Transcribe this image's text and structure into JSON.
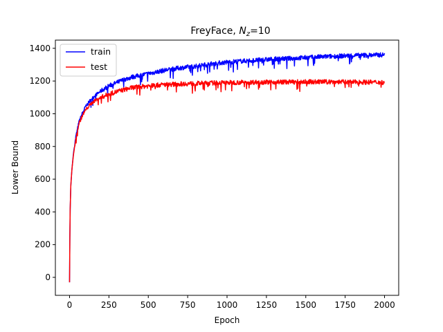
{
  "chart_data": {
    "type": "line",
    "title": {
      "prefix": "FreyFace, ",
      "symbol": "N",
      "subscript": "z",
      "suffix": "=10"
    },
    "xlabel": "Epoch",
    "ylabel": "Lower Bound",
    "xlim": [
      -90,
      2090
    ],
    "ylim": [
      -110,
      1450
    ],
    "xticks": [
      0,
      250,
      500,
      750,
      1000,
      1250,
      1500,
      1750,
      2000
    ],
    "yticks": [
      0,
      200,
      400,
      600,
      800,
      1000,
      1200,
      1400
    ],
    "grid": false,
    "legend_position": "upper-left",
    "series": [
      {
        "name": "train",
        "color": "#0000ff",
        "points": [
          [
            0,
            -30
          ],
          [
            3,
            380
          ],
          [
            8,
            560
          ],
          [
            15,
            660
          ],
          [
            25,
            760
          ],
          [
            40,
            860
          ],
          [
            60,
            950
          ],
          [
            80,
            1000
          ],
          [
            100,
            1040
          ],
          [
            130,
            1080
          ],
          [
            160,
            1110
          ],
          [
            200,
            1140
          ],
          [
            250,
            1170
          ],
          [
            300,
            1190
          ],
          [
            350,
            1210
          ],
          [
            400,
            1225
          ],
          [
            450,
            1235
          ],
          [
            500,
            1245
          ],
          [
            600,
            1265
          ],
          [
            700,
            1280
          ],
          [
            800,
            1290
          ],
          [
            900,
            1305
          ],
          [
            1000,
            1315
          ],
          [
            1100,
            1322
          ],
          [
            1200,
            1328
          ],
          [
            1300,
            1334
          ],
          [
            1400,
            1338
          ],
          [
            1500,
            1343
          ],
          [
            1600,
            1348
          ],
          [
            1700,
            1352
          ],
          [
            1800,
            1356
          ],
          [
            1900,
            1358
          ],
          [
            2000,
            1360
          ]
        ],
        "dips": [
          [
            780,
            1235
          ],
          [
            1040,
            1255
          ],
          [
            1200,
            1280
          ],
          [
            1550,
            1295
          ],
          [
            1010,
            1265
          ]
        ]
      },
      {
        "name": "test",
        "color": "#ff0000",
        "points": [
          [
            0,
            -30
          ],
          [
            3,
            380
          ],
          [
            8,
            560
          ],
          [
            15,
            660
          ],
          [
            25,
            750
          ],
          [
            40,
            850
          ],
          [
            60,
            940
          ],
          [
            80,
            985
          ],
          [
            100,
            1020
          ],
          [
            130,
            1055
          ],
          [
            160,
            1080
          ],
          [
            200,
            1100
          ],
          [
            250,
            1120
          ],
          [
            300,
            1135
          ],
          [
            350,
            1148
          ],
          [
            400,
            1160
          ],
          [
            450,
            1165
          ],
          [
            500,
            1170
          ],
          [
            600,
            1178
          ],
          [
            700,
            1182
          ],
          [
            800,
            1185
          ],
          [
            900,
            1188
          ],
          [
            1000,
            1190
          ],
          [
            1100,
            1192
          ],
          [
            1200,
            1193
          ],
          [
            1300,
            1194
          ],
          [
            1400,
            1194
          ],
          [
            1500,
            1195
          ],
          [
            1600,
            1195
          ],
          [
            1700,
            1195
          ],
          [
            1800,
            1194
          ],
          [
            1900,
            1193
          ],
          [
            2000,
            1192
          ]
        ],
        "dips": [
          [
            780,
            1125
          ],
          [
            1030,
            1140
          ],
          [
            1200,
            1150
          ],
          [
            1450,
            1155
          ],
          [
            1750,
            1160
          ]
        ]
      }
    ]
  }
}
